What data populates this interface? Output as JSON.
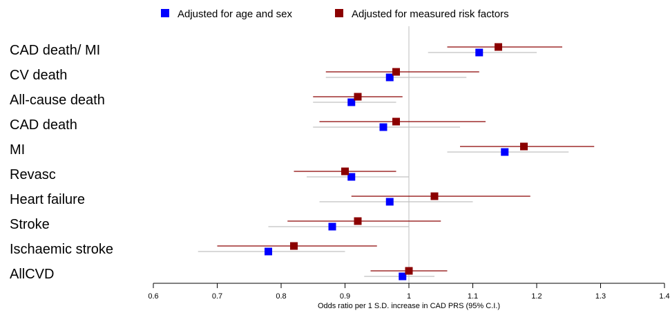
{
  "chart_data": {
    "type": "forest",
    "xlabel": "Odds ratio per 1 S.D. increase in CAD PRS (95% C.I.)",
    "ylabel": "",
    "xlim": [
      0.6,
      1.4
    ],
    "x_ticks": [
      "0.6",
      "0.7",
      "0.8",
      "0.9",
      "1",
      "1.1",
      "1.2",
      "1.3",
      "1.4"
    ],
    "reference_line": 1.0,
    "grid": false,
    "legend_position": "top-center",
    "categories": [
      "CAD death/ MI",
      "CV death",
      "All-cause death",
      "CAD death",
      "MI",
      "Revasc",
      "Heart failure",
      "Stroke",
      "Ischaemic stroke",
      "AllCVD"
    ],
    "series": [
      {
        "name": "Adjusted for age and sex",
        "color": "#0000ff",
        "ci_color": "#c0c0c0",
        "values": [
          1.11,
          0.97,
          0.91,
          0.96,
          1.15,
          0.91,
          0.97,
          0.88,
          0.78,
          0.99
        ],
        "lower": [
          1.03,
          0.87,
          0.85,
          0.85,
          1.06,
          0.84,
          0.86,
          0.78,
          0.67,
          0.93
        ],
        "upper": [
          1.2,
          1.09,
          0.98,
          1.08,
          1.25,
          1.0,
          1.1,
          1.0,
          0.9,
          1.04
        ]
      },
      {
        "name": "Adjusted for measured risk factors",
        "color": "#8b0000",
        "ci_color": "#8b0000",
        "values": [
          1.14,
          0.98,
          0.92,
          0.98,
          1.18,
          0.9,
          1.04,
          0.92,
          0.82,
          1.0
        ],
        "lower": [
          1.06,
          0.87,
          0.85,
          0.86,
          1.08,
          0.82,
          0.91,
          0.81,
          0.7,
          0.94
        ],
        "upper": [
          1.24,
          1.11,
          0.99,
          1.12,
          1.29,
          0.98,
          1.19,
          1.05,
          0.95,
          1.06
        ]
      }
    ]
  }
}
